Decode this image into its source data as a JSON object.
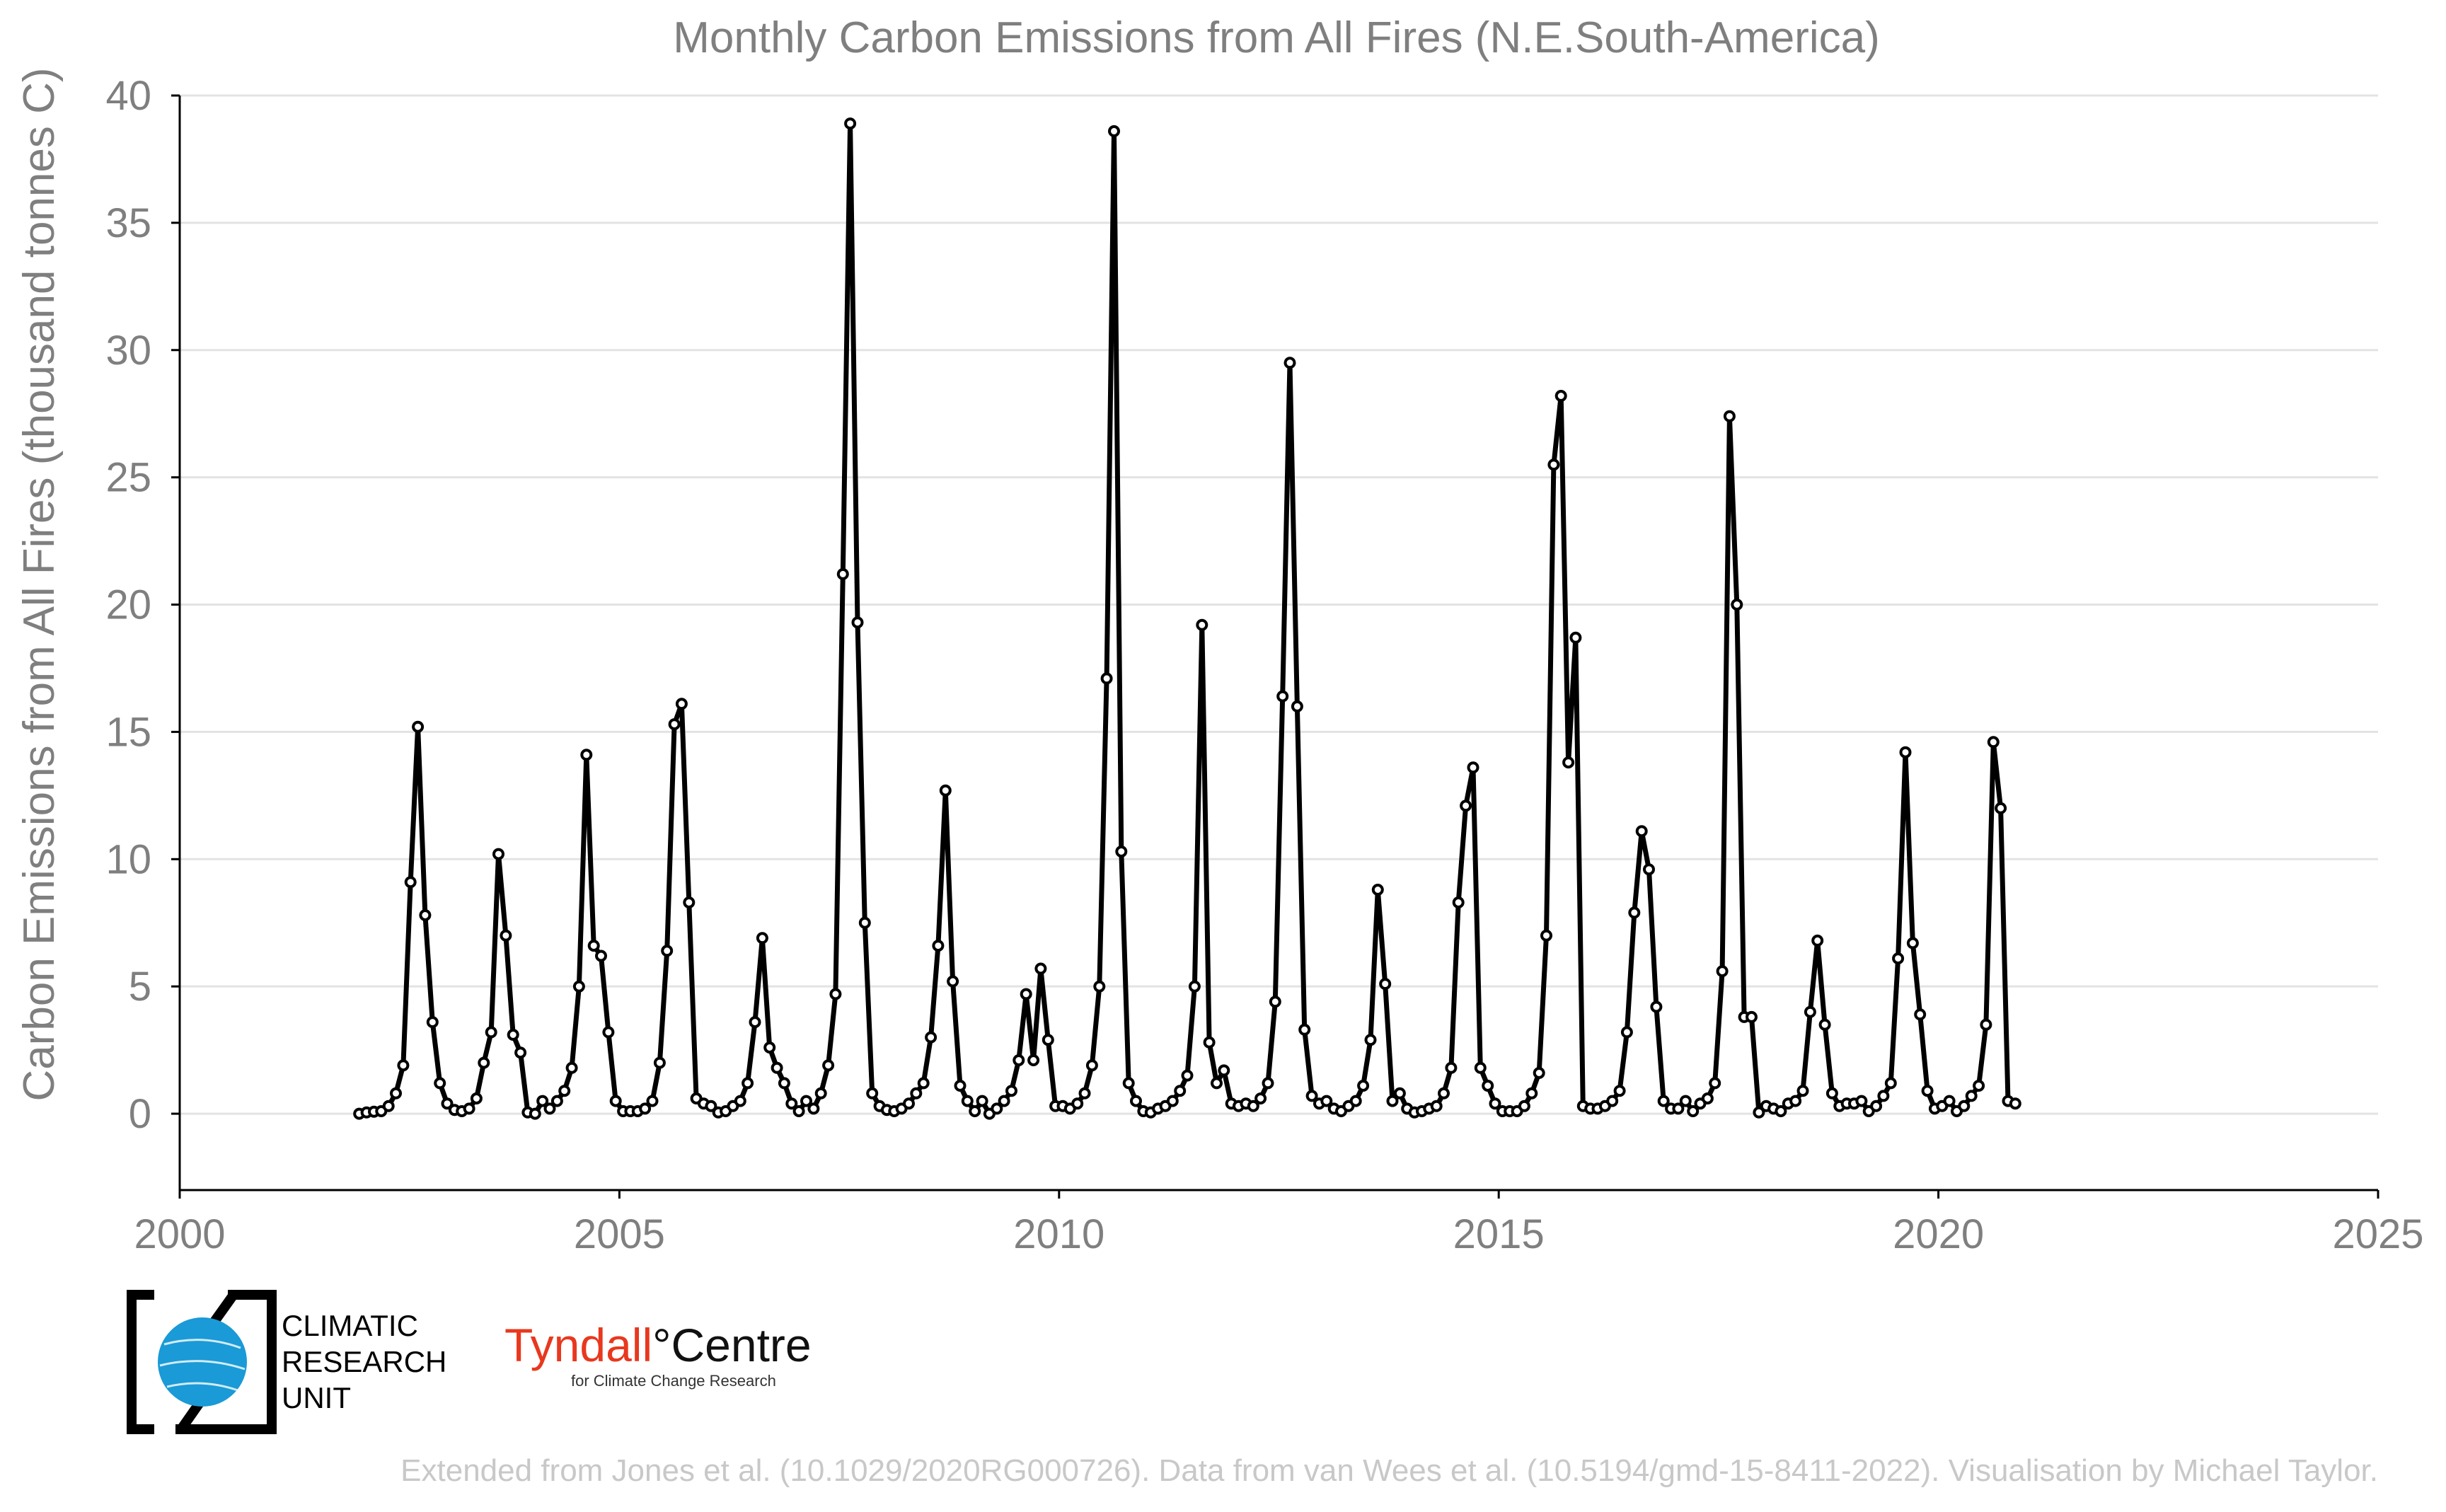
{
  "chart_data": {
    "type": "line",
    "title": "Monthly Carbon Emissions from All Fires (N.E.South-America)",
    "ylabel": "Carbon Emissions from All Fires (thousand tonnes C)",
    "xlabel": "",
    "xlim": [
      2000,
      2025
    ],
    "ylim": [
      -3,
      40
    ],
    "x_ticks": [
      "2000",
      "2005",
      "2010",
      "2015",
      "2020",
      "2025"
    ],
    "y_ticks": [
      "0",
      "5",
      "10",
      "15",
      "20",
      "25",
      "30",
      "35",
      "40"
    ],
    "grid": "horizontal",
    "line_color": "#000000",
    "marker": "open-circle",
    "start_date": "2002-01",
    "frequency": "monthly",
    "series": [
      {
        "values": [
          0.0,
          0.05,
          0.08,
          0.1,
          0.3,
          0.8,
          1.9,
          9.1,
          15.2,
          7.8,
          3.6,
          1.2,
          0.4,
          0.15,
          0.1,
          0.2,
          0.6,
          2.0,
          3.2,
          10.2,
          7.0,
          3.1,
          2.4,
          0.05,
          0.0,
          0.5,
          0.2,
          0.5,
          0.9,
          1.8,
          5.0,
          14.1,
          6.6,
          6.2,
          3.2,
          0.5,
          0.1,
          0.1,
          0.1,
          0.2,
          0.5,
          2.0,
          6.4,
          15.3,
          16.1,
          8.3,
          0.6,
          0.4,
          0.3,
          0.05,
          0.1,
          0.3,
          0.5,
          1.2,
          3.6,
          6.9,
          2.6,
          1.8,
          1.2,
          0.4,
          0.1,
          0.5,
          0.2,
          0.8,
          1.9,
          4.7,
          21.2,
          38.9,
          19.3,
          7.5,
          0.8,
          0.3,
          0.15,
          0.1,
          0.2,
          0.4,
          0.8,
          1.2,
          3.0,
          6.6,
          12.7,
          5.2,
          1.1,
          0.5,
          0.1,
          0.5,
          0.0,
          0.2,
          0.5,
          0.9,
          2.1,
          4.7,
          2.1,
          5.7,
          2.9,
          0.3,
          0.3,
          0.2,
          0.4,
          0.8,
          1.9,
          5.0,
          17.1,
          38.6,
          10.3,
          1.2,
          0.5,
          0.1,
          0.05,
          0.2,
          0.3,
          0.5,
          0.9,
          1.5,
          5.0,
          19.2,
          2.8,
          1.2,
          1.7,
          0.4,
          0.3,
          0.4,
          0.3,
          0.6,
          1.2,
          4.4,
          16.4,
          29.5,
          16.0,
          3.3,
          0.7,
          0.4,
          0.5,
          0.2,
          0.1,
          0.3,
          0.5,
          1.1,
          2.9,
          8.8,
          5.1,
          0.5,
          0.8,
          0.2,
          0.05,
          0.1,
          0.2,
          0.3,
          0.8,
          1.8,
          8.3,
          12.1,
          13.6,
          1.8,
          1.1,
          0.4,
          0.1,
          0.1,
          0.1,
          0.3,
          0.8,
          1.6,
          7.0,
          25.5,
          28.2,
          13.8,
          18.7,
          0.3,
          0.2,
          0.2,
          0.3,
          0.5,
          0.9,
          3.2,
          7.9,
          11.1,
          9.6,
          4.2,
          0.5,
          0.2,
          0.2,
          0.5,
          0.1,
          0.4,
          0.6,
          1.2,
          5.6,
          27.4,
          20.0,
          3.8,
          3.8,
          0.05,
          0.3,
          0.2,
          0.1,
          0.4,
          0.5,
          0.9,
          4.0,
          6.8,
          3.5,
          0.8,
          0.3,
          0.4,
          0.4,
          0.5,
          0.1,
          0.3,
          0.7,
          1.2,
          6.1,
          14.2,
          6.7,
          3.9,
          0.9,
          0.2,
          0.3,
          0.5,
          0.1,
          0.3,
          0.7,
          1.1,
          3.5,
          14.6,
          12.0,
          0.5,
          0.4
        ]
      }
    ]
  },
  "logos": {
    "cru_line1": "CLIMATIC",
    "cru_line2": "RESEARCH",
    "cru_line3": "UNIT",
    "tyndall_name": "Tyndall°Centre",
    "tyndall_part1": "Tyndall",
    "tyndall_part2": "°Centre",
    "tyndall_sub": "for Climate Change Research",
    "tyndall_color": "#e8381e",
    "cru_globe_color": "#1a9ad6"
  },
  "caption": "Extended from Jones et al. (10.1029/2020RG000726). Data from van Wees et al. (10.5194/gmd-15-8411-2022). Visualisation by Michael Taylor."
}
